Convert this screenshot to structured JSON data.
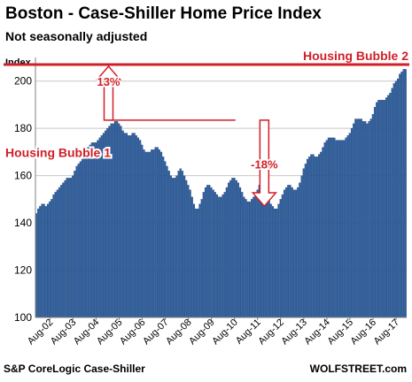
{
  "title": "Boston - Case-Shiller Home Price Index",
  "subtitle": "Not seasonally adjusted",
  "source": "S&P CoreLogic Case-Shiller",
  "brand": "WOLFSTREET.com",
  "colors": {
    "bar": "#2e5f9e",
    "bar_edge": "#1c3d6e",
    "annotation": "#d11f28"
  },
  "chart_data": {
    "type": "bar",
    "ylabel": "Index",
    "ylim": [
      100,
      210
    ],
    "yticks": [
      100,
      120,
      140,
      160,
      180,
      200
    ],
    "grid": true,
    "start": "2002-01",
    "tick_labels": [
      "Aug-02",
      "Aug-03",
      "Aug-04",
      "Aug-05",
      "Aug-06",
      "Aug-07",
      "Aug-08",
      "Aug-09",
      "Aug-10",
      "Aug-11",
      "Aug-12",
      "Aug-13",
      "Aug-14",
      "Aug-15",
      "Aug-16",
      "Aug-17"
    ],
    "values": [
      144,
      146,
      147,
      148,
      148,
      147,
      148,
      149,
      150,
      152,
      153,
      154,
      155,
      156,
      157,
      158,
      159,
      159,
      159,
      160,
      162,
      164,
      165,
      166,
      167,
      168,
      170,
      172,
      173,
      174,
      174,
      174,
      175,
      176,
      177,
      178,
      179,
      180,
      181,
      182,
      182,
      183,
      183,
      182,
      181,
      179,
      178,
      178,
      177,
      177,
      178,
      178,
      177,
      176,
      175,
      173,
      171,
      170,
      170,
      170,
      171,
      171,
      172,
      172,
      171,
      170,
      168,
      166,
      164,
      162,
      160,
      159,
      159,
      160,
      162,
      163,
      162,
      160,
      158,
      156,
      154,
      151,
      148,
      146,
      146,
      148,
      150,
      153,
      155,
      156,
      156,
      155,
      154,
      153,
      152,
      151,
      151,
      152,
      153,
      155,
      157,
      158,
      159,
      159,
      158,
      157,
      155,
      153,
      151,
      150,
      149,
      149,
      150,
      151,
      152,
      154,
      156,
      156,
      155,
      154,
      152,
      150,
      148,
      147,
      146,
      146,
      148,
      150,
      152,
      154,
      155,
      156,
      156,
      155,
      154,
      154,
      155,
      157,
      160,
      163,
      165,
      167,
      168,
      169,
      169,
      168,
      168,
      169,
      170,
      172,
      174,
      175,
      176,
      176,
      176,
      176,
      175,
      175,
      175,
      175,
      175,
      176,
      177,
      178,
      180,
      182,
      184,
      184,
      184,
      184,
      183,
      183,
      182,
      183,
      184,
      186,
      189,
      191,
      192,
      192,
      192,
      192,
      193,
      194,
      195,
      197,
      199,
      200,
      201,
      203,
      204,
      205,
      205
    ],
    "annotations": {
      "bubble1": "Housing Bubble 1",
      "bubble2": "Housing Bubble 2",
      "rise": "13%",
      "fall": "-18%",
      "peak_level": 183.5,
      "bubble2_level": 207
    }
  }
}
